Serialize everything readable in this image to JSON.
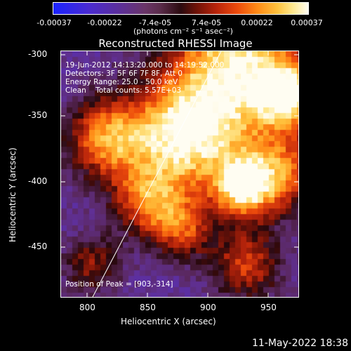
{
  "colorbar": {
    "ticks": [
      "-0.00037",
      "-0.00022",
      "-7.4e-05",
      "7.4e-05",
      "0.00022",
      "0.00037"
    ],
    "unit_label": "(photons cm⁻² s⁻¹ asec⁻²)"
  },
  "title": "Reconstructed RHESSI Image",
  "annotations": {
    "line1": "19-Jun-2012 14:13:20.000 to 14:19:52.000",
    "line2": "Detectors: 3F 5F 6F 7F 8F, Att 0",
    "line3": "Energy Range: 25.0 - 50.0 keV",
    "line4": "Clean    Total counts: 5.57E+03",
    "peak": "Position of Peak = [903,-314]"
  },
  "axes": {
    "x_label": "Heliocentric X (arcsec)",
    "y_label": "Heliocentric Y (arcsec)",
    "x_ticks": [
      "800",
      "850",
      "900",
      "950"
    ],
    "y_ticks": [
      "-300",
      "-350",
      "-400",
      "-450"
    ]
  },
  "timestamp": "11-May-2022 18:38"
}
